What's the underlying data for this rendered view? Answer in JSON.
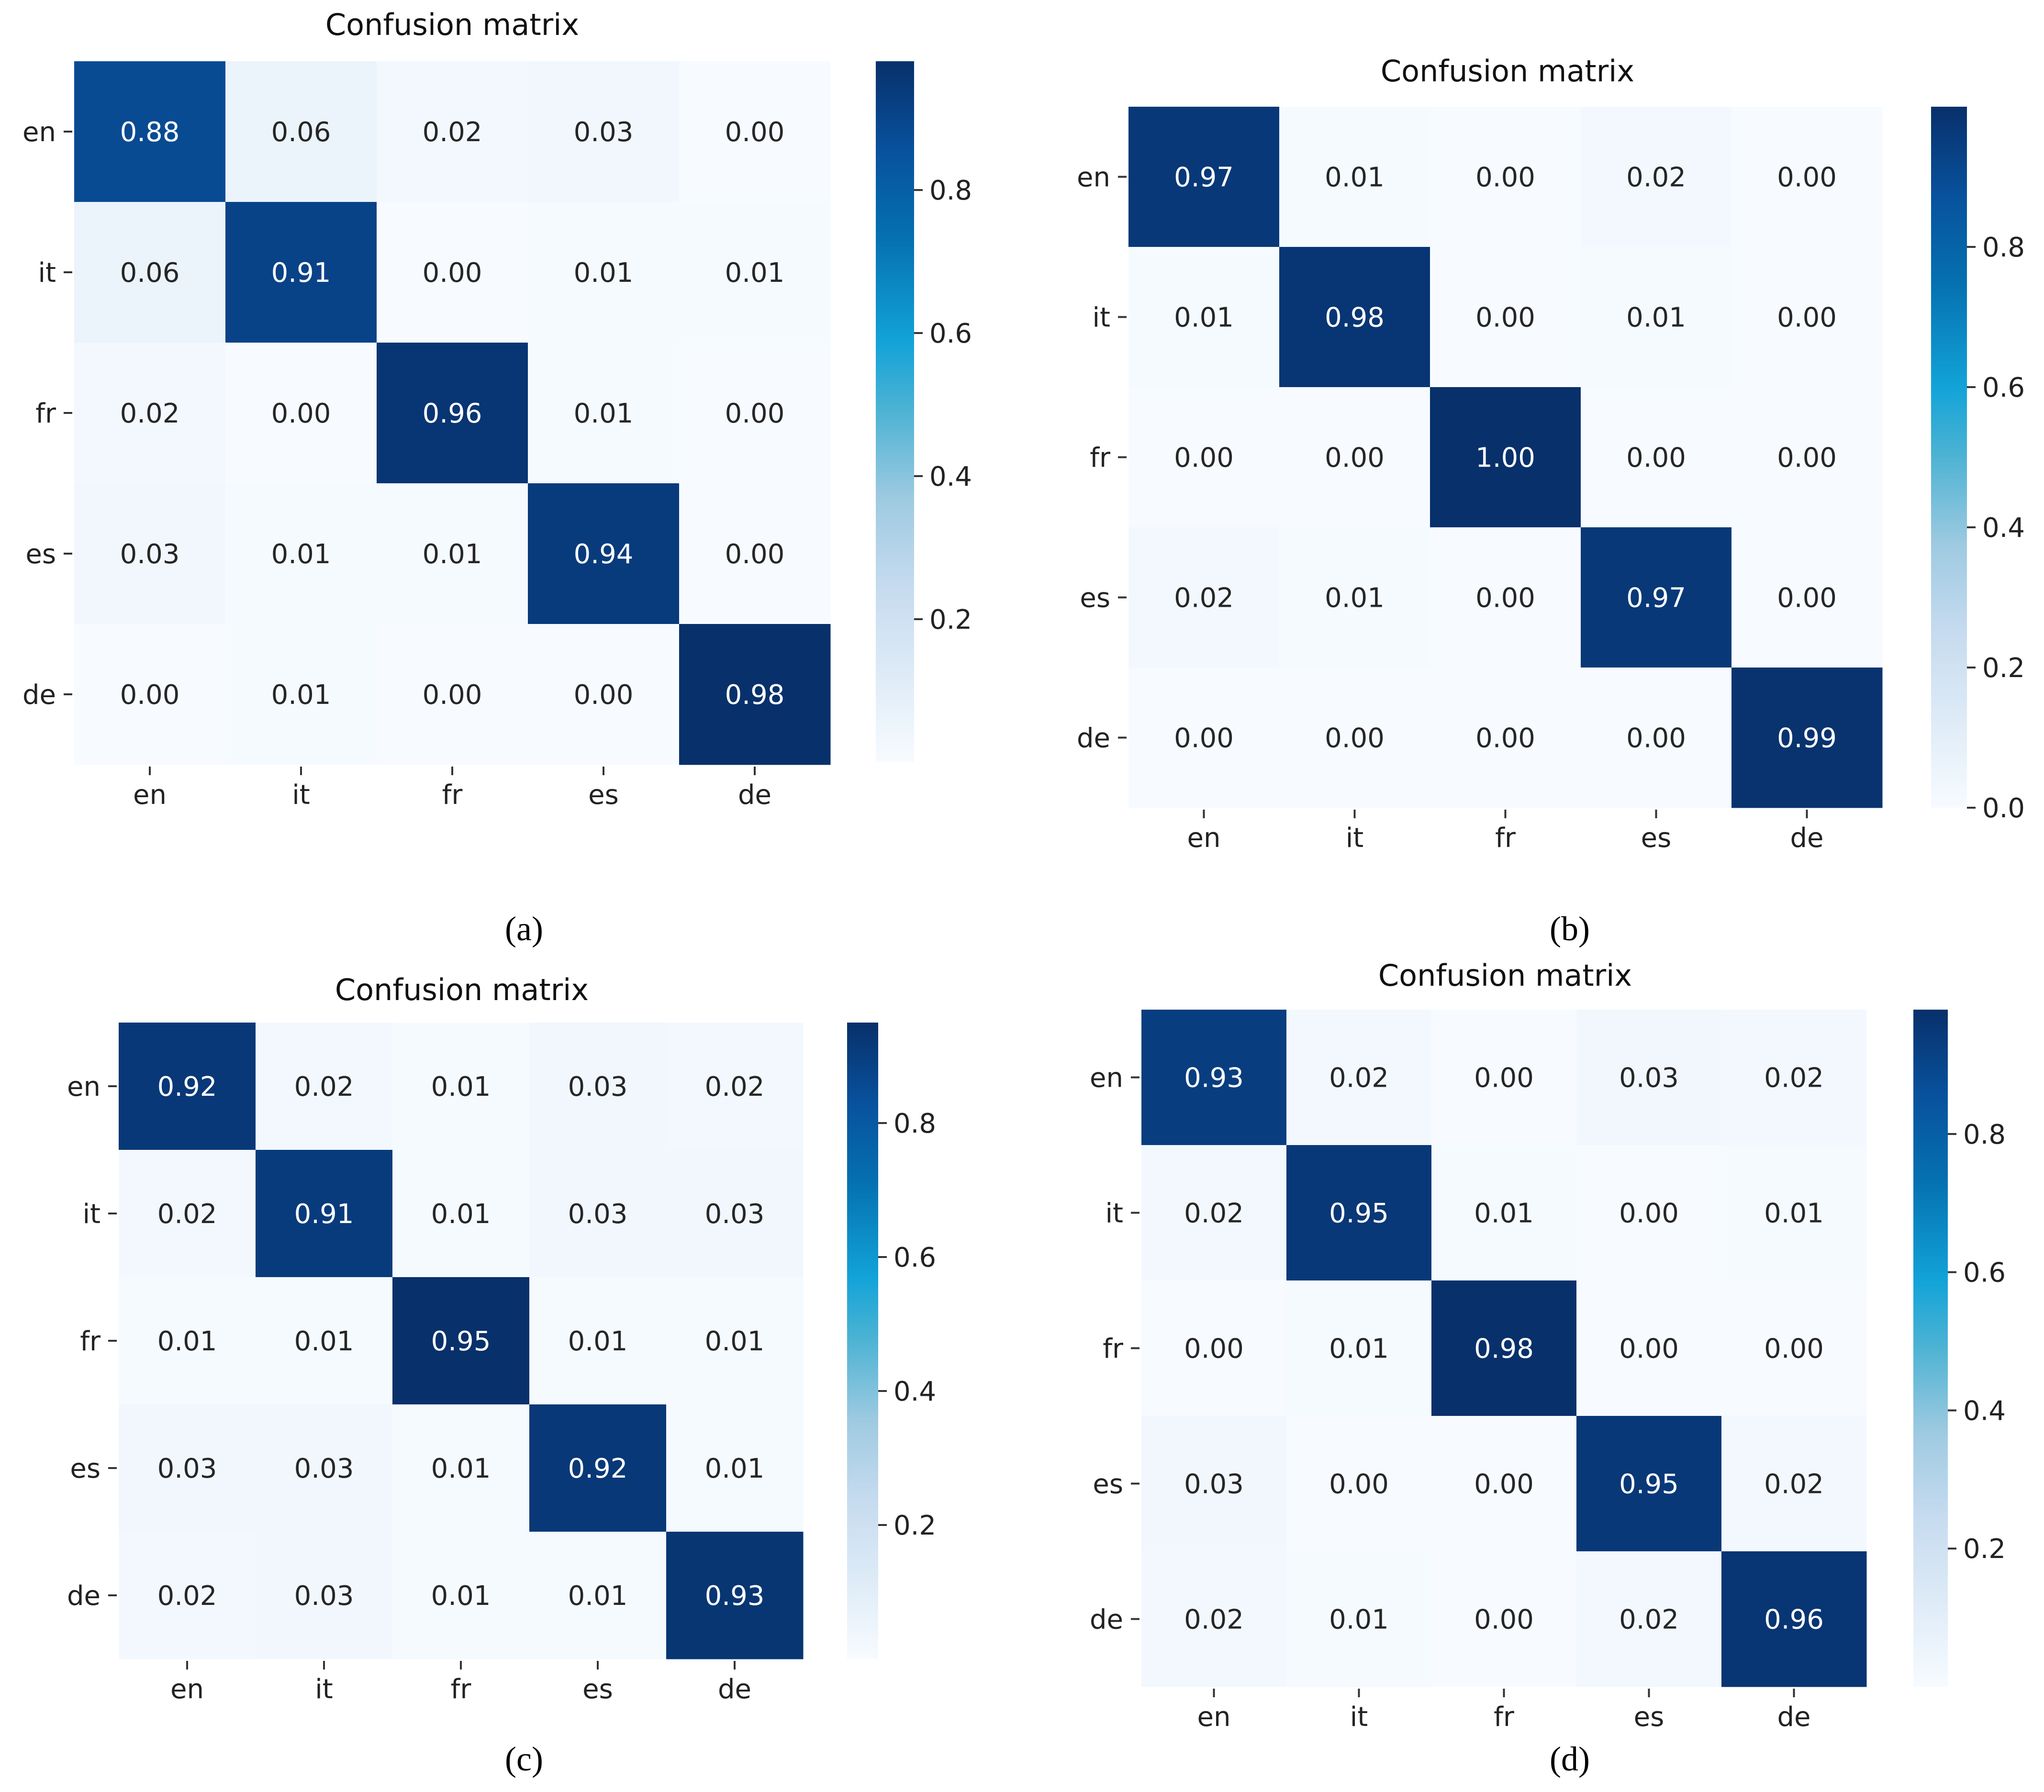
{
  "chart_data": [
    {
      "type": "heatmap",
      "title": "Confusion matrix",
      "caption": "(a)",
      "x_labels": [
        "en",
        "it",
        "fr",
        "es",
        "de"
      ],
      "y_labels": [
        "en",
        "it",
        "fr",
        "es",
        "de"
      ],
      "values": [
        [
          0.88,
          0.06,
          0.02,
          0.03,
          0.0
        ],
        [
          0.06,
          0.91,
          0.0,
          0.01,
          0.01
        ],
        [
          0.02,
          0.0,
          0.96,
          0.01,
          0.0
        ],
        [
          0.03,
          0.01,
          0.01,
          0.94,
          0.0
        ],
        [
          0.0,
          0.01,
          0.0,
          0.0,
          0.98
        ]
      ],
      "colorbar": {
        "range": [
          0.0,
          0.98
        ],
        "ticks": [
          0.2,
          0.4,
          0.6,
          0.8
        ],
        "tick_labels": [
          "0.2",
          "0.4",
          "0.6",
          "0.8"
        ]
      },
      "colormap": "Blues"
    },
    {
      "type": "heatmap",
      "title": "Confusion matrix",
      "caption": "(b)",
      "x_labels": [
        "en",
        "it",
        "fr",
        "es",
        "de"
      ],
      "y_labels": [
        "en",
        "it",
        "fr",
        "es",
        "de"
      ],
      "values": [
        [
          0.97,
          0.01,
          0.0,
          0.02,
          0.0
        ],
        [
          0.01,
          0.98,
          0.0,
          0.01,
          0.0
        ],
        [
          0.0,
          0.0,
          1.0,
          0.0,
          0.0
        ],
        [
          0.02,
          0.01,
          0.0,
          0.97,
          0.0
        ],
        [
          0.0,
          0.0,
          0.0,
          0.0,
          0.99
        ]
      ],
      "colorbar": {
        "range": [
          0.0,
          1.0
        ],
        "ticks": [
          0.0,
          0.2,
          0.4,
          0.6,
          0.8
        ],
        "tick_labels": [
          "0.0",
          "0.2",
          "0.4",
          "0.6",
          "0.8"
        ]
      },
      "colormap": "Blues"
    },
    {
      "type": "heatmap",
      "title": "Confusion matrix",
      "caption": "(c)",
      "x_labels": [
        "en",
        "it",
        "fr",
        "es",
        "de"
      ],
      "y_labels": [
        "en",
        "it",
        "fr",
        "es",
        "de"
      ],
      "values": [
        [
          0.92,
          0.02,
          0.01,
          0.03,
          0.02
        ],
        [
          0.02,
          0.91,
          0.01,
          0.03,
          0.03
        ],
        [
          0.01,
          0.01,
          0.95,
          0.01,
          0.01
        ],
        [
          0.03,
          0.03,
          0.01,
          0.92,
          0.01
        ],
        [
          0.02,
          0.03,
          0.01,
          0.01,
          0.93
        ]
      ],
      "colorbar": {
        "range": [
          0.0,
          0.95
        ],
        "ticks": [
          0.2,
          0.4,
          0.6,
          0.8
        ],
        "tick_labels": [
          "0.2",
          "0.4",
          "0.6",
          "0.8"
        ]
      },
      "colormap": "Blues"
    },
    {
      "type": "heatmap",
      "title": "Confusion matrix",
      "caption": "(d)",
      "x_labels": [
        "en",
        "it",
        "fr",
        "es",
        "de"
      ],
      "y_labels": [
        "en",
        "it",
        "fr",
        "es",
        "de"
      ],
      "values": [
        [
          0.93,
          0.02,
          0.0,
          0.03,
          0.02
        ],
        [
          0.02,
          0.95,
          0.01,
          0.0,
          0.01
        ],
        [
          0.0,
          0.01,
          0.98,
          0.0,
          0.0
        ],
        [
          0.03,
          0.0,
          0.0,
          0.95,
          0.02
        ],
        [
          0.02,
          0.01,
          0.0,
          0.02,
          0.96
        ]
      ],
      "colorbar": {
        "range": [
          0.0,
          0.98
        ],
        "ticks": [
          0.2,
          0.4,
          0.6,
          0.8
        ],
        "tick_labels": [
          "0.2",
          "0.4",
          "0.6",
          "0.8"
        ]
      },
      "colormap": "Blues"
    }
  ]
}
